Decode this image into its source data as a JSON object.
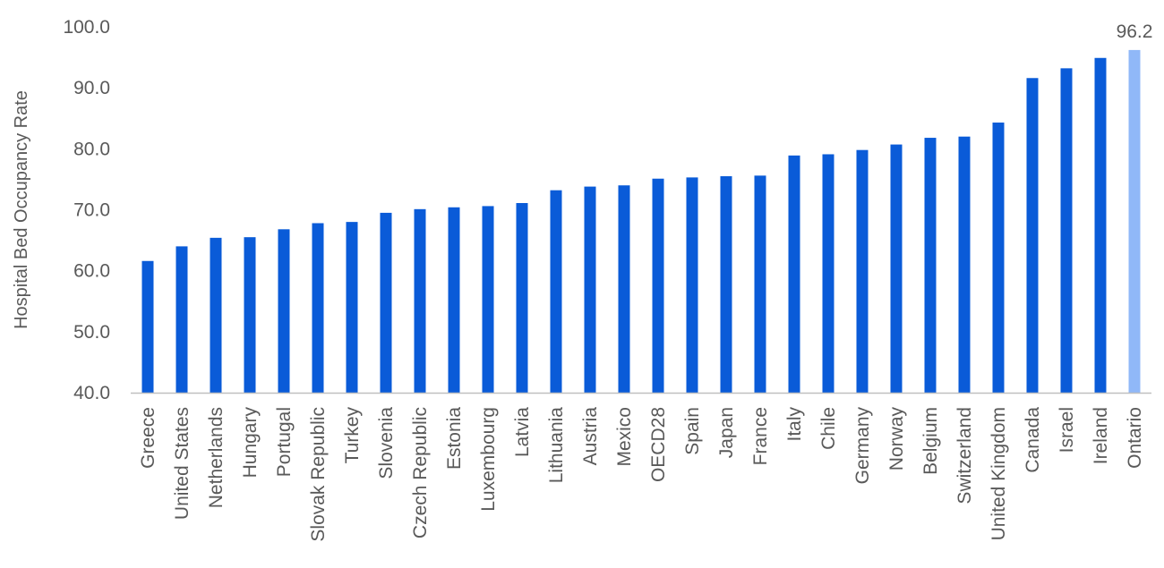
{
  "chart_data": {
    "type": "bar",
    "title": "",
    "xlabel": "",
    "ylabel": "Hospital Bed Occupancy Rate",
    "ylim": [
      40,
      100
    ],
    "yticks": [
      "40.0",
      "50.0",
      "60.0",
      "70.0",
      "80.0",
      "90.0",
      "100.0"
    ],
    "grid": false,
    "legend": "none",
    "categories": [
      "Greece",
      "United States",
      "Netherlands",
      "Hungary",
      "Portugal",
      "Slovak Republic",
      "Turkey",
      "Slovenia",
      "Czech Republic",
      "Estonia",
      "Luxembourg",
      "Latvia",
      "Lithuania",
      "Austria",
      "Mexico",
      "OECD28",
      "Spain",
      "Japan",
      "France",
      "Italy",
      "Chile",
      "Germany",
      "Norway",
      "Belgium",
      "Switzerland",
      "United Kingdom",
      "Canada",
      "Israel",
      "Ireland",
      "Ontario"
    ],
    "values": [
      61.6,
      64.0,
      65.4,
      65.5,
      66.8,
      67.8,
      68.0,
      69.5,
      70.1,
      70.4,
      70.6,
      71.1,
      73.2,
      73.8,
      74.0,
      75.1,
      75.3,
      75.5,
      75.6,
      78.9,
      79.1,
      79.8,
      80.7,
      81.8,
      82.0,
      84.3,
      91.6,
      93.2,
      94.9,
      96.2
    ],
    "highlight_category": "Ontario",
    "data_labels": [
      {
        "category": "Ontario",
        "text": "96.2"
      }
    ],
    "colors": {
      "bar": "#0A5BD8",
      "highlight": "#90B8F8",
      "axis": "#BFBFBF",
      "text": "#595959"
    }
  }
}
